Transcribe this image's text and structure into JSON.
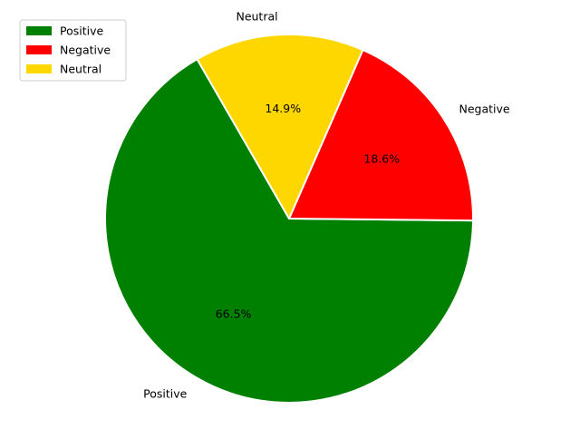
{
  "chart_data": {
    "type": "pie",
    "categories": [
      "Positive",
      "Negative",
      "Neutral"
    ],
    "values": [
      66.5,
      18.6,
      14.9
    ],
    "value_labels": [
      "66.5%",
      "18.6%",
      "14.9%"
    ],
    "colors": [
      "#008000",
      "#ff0000",
      "#ffd700"
    ],
    "slice_edge_color": "#ffffff",
    "start_angle_degrees": 120,
    "direction": "counterclockwise",
    "legend": {
      "placement": "top-left",
      "entries": [
        "Positive",
        "Negative",
        "Neutral"
      ]
    },
    "title": ""
  }
}
